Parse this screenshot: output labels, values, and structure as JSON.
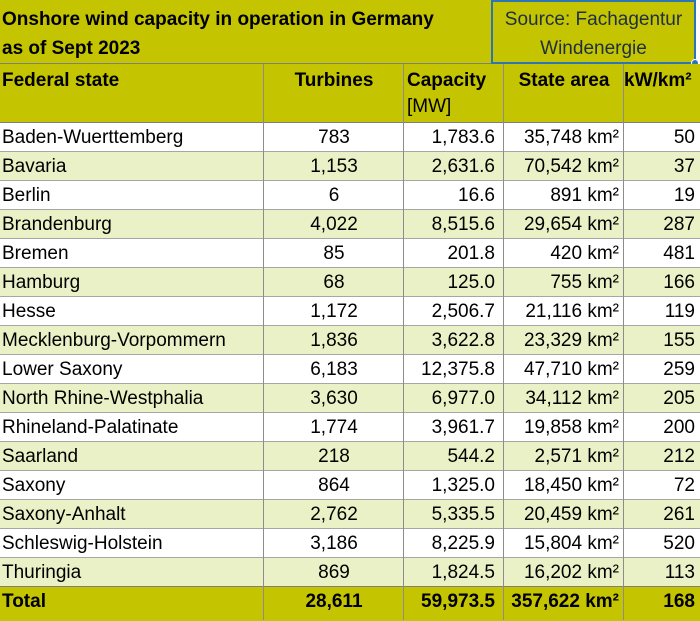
{
  "title": {
    "line1": "Onshore wind capacity in operation in Germany",
    "line2": "as of Sept 2023"
  },
  "source": {
    "line1": "Source: Fachagentur",
    "line2": "Windenergie"
  },
  "colors": {
    "header_olive": "#c4c400",
    "band_light_green": "#ebf1c6",
    "selection_blue": "#2e75b6"
  },
  "headers": {
    "state": "Federal state",
    "turbines": "Turbines",
    "capacity": "Capacity",
    "capacity_unit": "[MW]",
    "area": "State area",
    "density": "kW/km²"
  },
  "rows": [
    {
      "state": "Baden-Wuerttemberg",
      "turbines": "783",
      "capacity": "1,783.6",
      "area": "35,748  km²",
      "density": "50"
    },
    {
      "state": "Bavaria",
      "turbines": "1,153",
      "capacity": "2,631.6",
      "area": "70,542  km²",
      "density": "37"
    },
    {
      "state": "Berlin",
      "turbines": "6",
      "capacity": "16.6",
      "area": "891  km²",
      "density": "19"
    },
    {
      "state": "Brandenburg",
      "turbines": "4,022",
      "capacity": "8,515.6",
      "area": "29,654  km²",
      "density": "287"
    },
    {
      "state": "Bremen",
      "turbines": "85",
      "capacity": "201.8",
      "area": "420  km²",
      "density": "481"
    },
    {
      "state": "Hamburg",
      "turbines": "68",
      "capacity": "125.0",
      "area": "755  km²",
      "density": "166"
    },
    {
      "state": "Hesse",
      "turbines": "1,172",
      "capacity": "2,506.7",
      "area": "21,116  km²",
      "density": "119"
    },
    {
      "state": "Mecklenburg-Vorpommern",
      "turbines": "1,836",
      "capacity": "3,622.8",
      "area": "23,329  km²",
      "density": "155"
    },
    {
      "state": "Lower Saxony",
      "turbines": "6,183",
      "capacity": "12,375.8",
      "area": "47,710  km²",
      "density": "259"
    },
    {
      "state": "North Rhine-Westphalia",
      "turbines": "3,630",
      "capacity": "6,977.0",
      "area": "34,112  km²",
      "density": "205"
    },
    {
      "state": "Rhineland-Palatinate",
      "turbines": "1,774",
      "capacity": "3,961.7",
      "area": "19,858  km²",
      "density": "200"
    },
    {
      "state": "Saarland",
      "turbines": "218",
      "capacity": "544.2",
      "area": "2,571  km²",
      "density": "212"
    },
    {
      "state": "Saxony",
      "turbines": "864",
      "capacity": "1,325.0",
      "area": "18,450  km²",
      "density": "72"
    },
    {
      "state": "Saxony-Anhalt",
      "turbines": "2,762",
      "capacity": "5,335.5",
      "area": "20,459  km²",
      "density": "261"
    },
    {
      "state": "Schleswig-Holstein",
      "turbines": "3,186",
      "capacity": "8,225.9",
      "area": "15,804  km²",
      "density": "520"
    },
    {
      "state": "Thuringia",
      "turbines": "869",
      "capacity": "1,824.5",
      "area": "16,202  km²",
      "density": "113"
    }
  ],
  "total": {
    "label": "Total",
    "turbines": "28,611",
    "capacity": "59,973.5",
    "area": "357,622  km²",
    "density": "168"
  }
}
